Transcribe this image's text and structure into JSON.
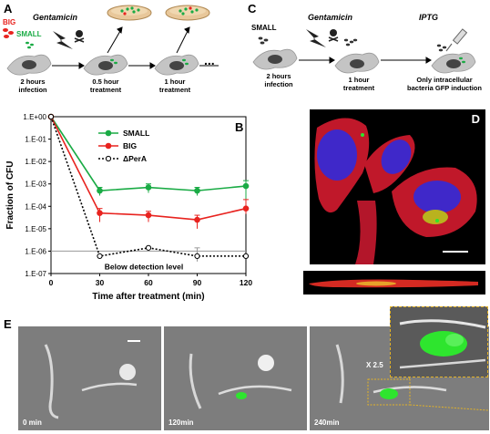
{
  "panel_a": {
    "label": "A",
    "big": "BIG",
    "small": "SMALL",
    "antibiotic": "Gentamicin",
    "step1": "2 hours\ninfection",
    "step2": "0.5 hour\ntreatment",
    "step3": "1 hour\ntreatment",
    "ellipsis": "...",
    "colors": {
      "big": "#e8231f",
      "small": "#1aab45",
      "cell": "#c4c4c4",
      "nucleus": "#444444"
    }
  },
  "panel_c": {
    "label": "C",
    "small": "SMALL",
    "antibiotic": "Gentamicin",
    "inducer": "IPTG",
    "step1": "2 hours\ninfection",
    "step2": "1 hour\ntreatment",
    "step3": "Only intracellular\nbacteria GFP induction"
  },
  "panel_b": {
    "label": "B"
  },
  "panel_d": {
    "label": "D"
  },
  "panel_e": {
    "label": "E",
    "frames": [
      "0 min",
      "120min",
      "240min"
    ],
    "zoom": "X 2.5",
    "colors": {
      "inset_border": "#e2b227",
      "gfp": "#2ee52e"
    }
  },
  "chart_data": {
    "type": "line",
    "xlabel": "Time after treatment (min)",
    "ylabel": "Fraction of CFU",
    "x_ticks": [
      0,
      30,
      60,
      90,
      120
    ],
    "xlim": [
      0,
      120
    ],
    "y_ticks": [
      "1.E+00",
      "1.E-01",
      "1.E-02",
      "1.E-03",
      "1.E-04",
      "1.E-05",
      "1.E-06",
      "1.E-07"
    ],
    "ylim": [
      1e-07,
      1
    ],
    "y_scale": "log",
    "legend_position": "top-right",
    "annotation": "Below detection level",
    "detection_level": 1e-06,
    "series": [
      {
        "name": "SMALL",
        "color": "#1aab45",
        "style": "solid",
        "marker": "filled-circle",
        "x": [
          0,
          30,
          60,
          90,
          120
        ],
        "y": [
          1,
          0.0005,
          0.0007,
          0.0005,
          0.0008
        ],
        "err": [
          0,
          0.0002,
          0.0003,
          0.0002,
          0.0006
        ]
      },
      {
        "name": "BIG",
        "color": "#e8231f",
        "style": "solid",
        "marker": "filled-circle",
        "x": [
          0,
          30,
          60,
          90,
          120
        ],
        "y": [
          1,
          5e-05,
          4e-05,
          2.5e-05,
          8e-05
        ],
        "err": [
          0,
          3e-05,
          2e-05,
          1.5e-05,
          0.00012
        ]
      },
      {
        "name": "ΔPerA",
        "color": "#000000",
        "style": "dotted",
        "marker": "open-circle",
        "x": [
          0,
          30,
          60,
          90,
          120
        ],
        "y": [
          1,
          6e-07,
          1.4e-06,
          6e-07,
          6e-07
        ],
        "err": [
          0,
          0,
          0,
          8e-07,
          0
        ]
      }
    ]
  }
}
